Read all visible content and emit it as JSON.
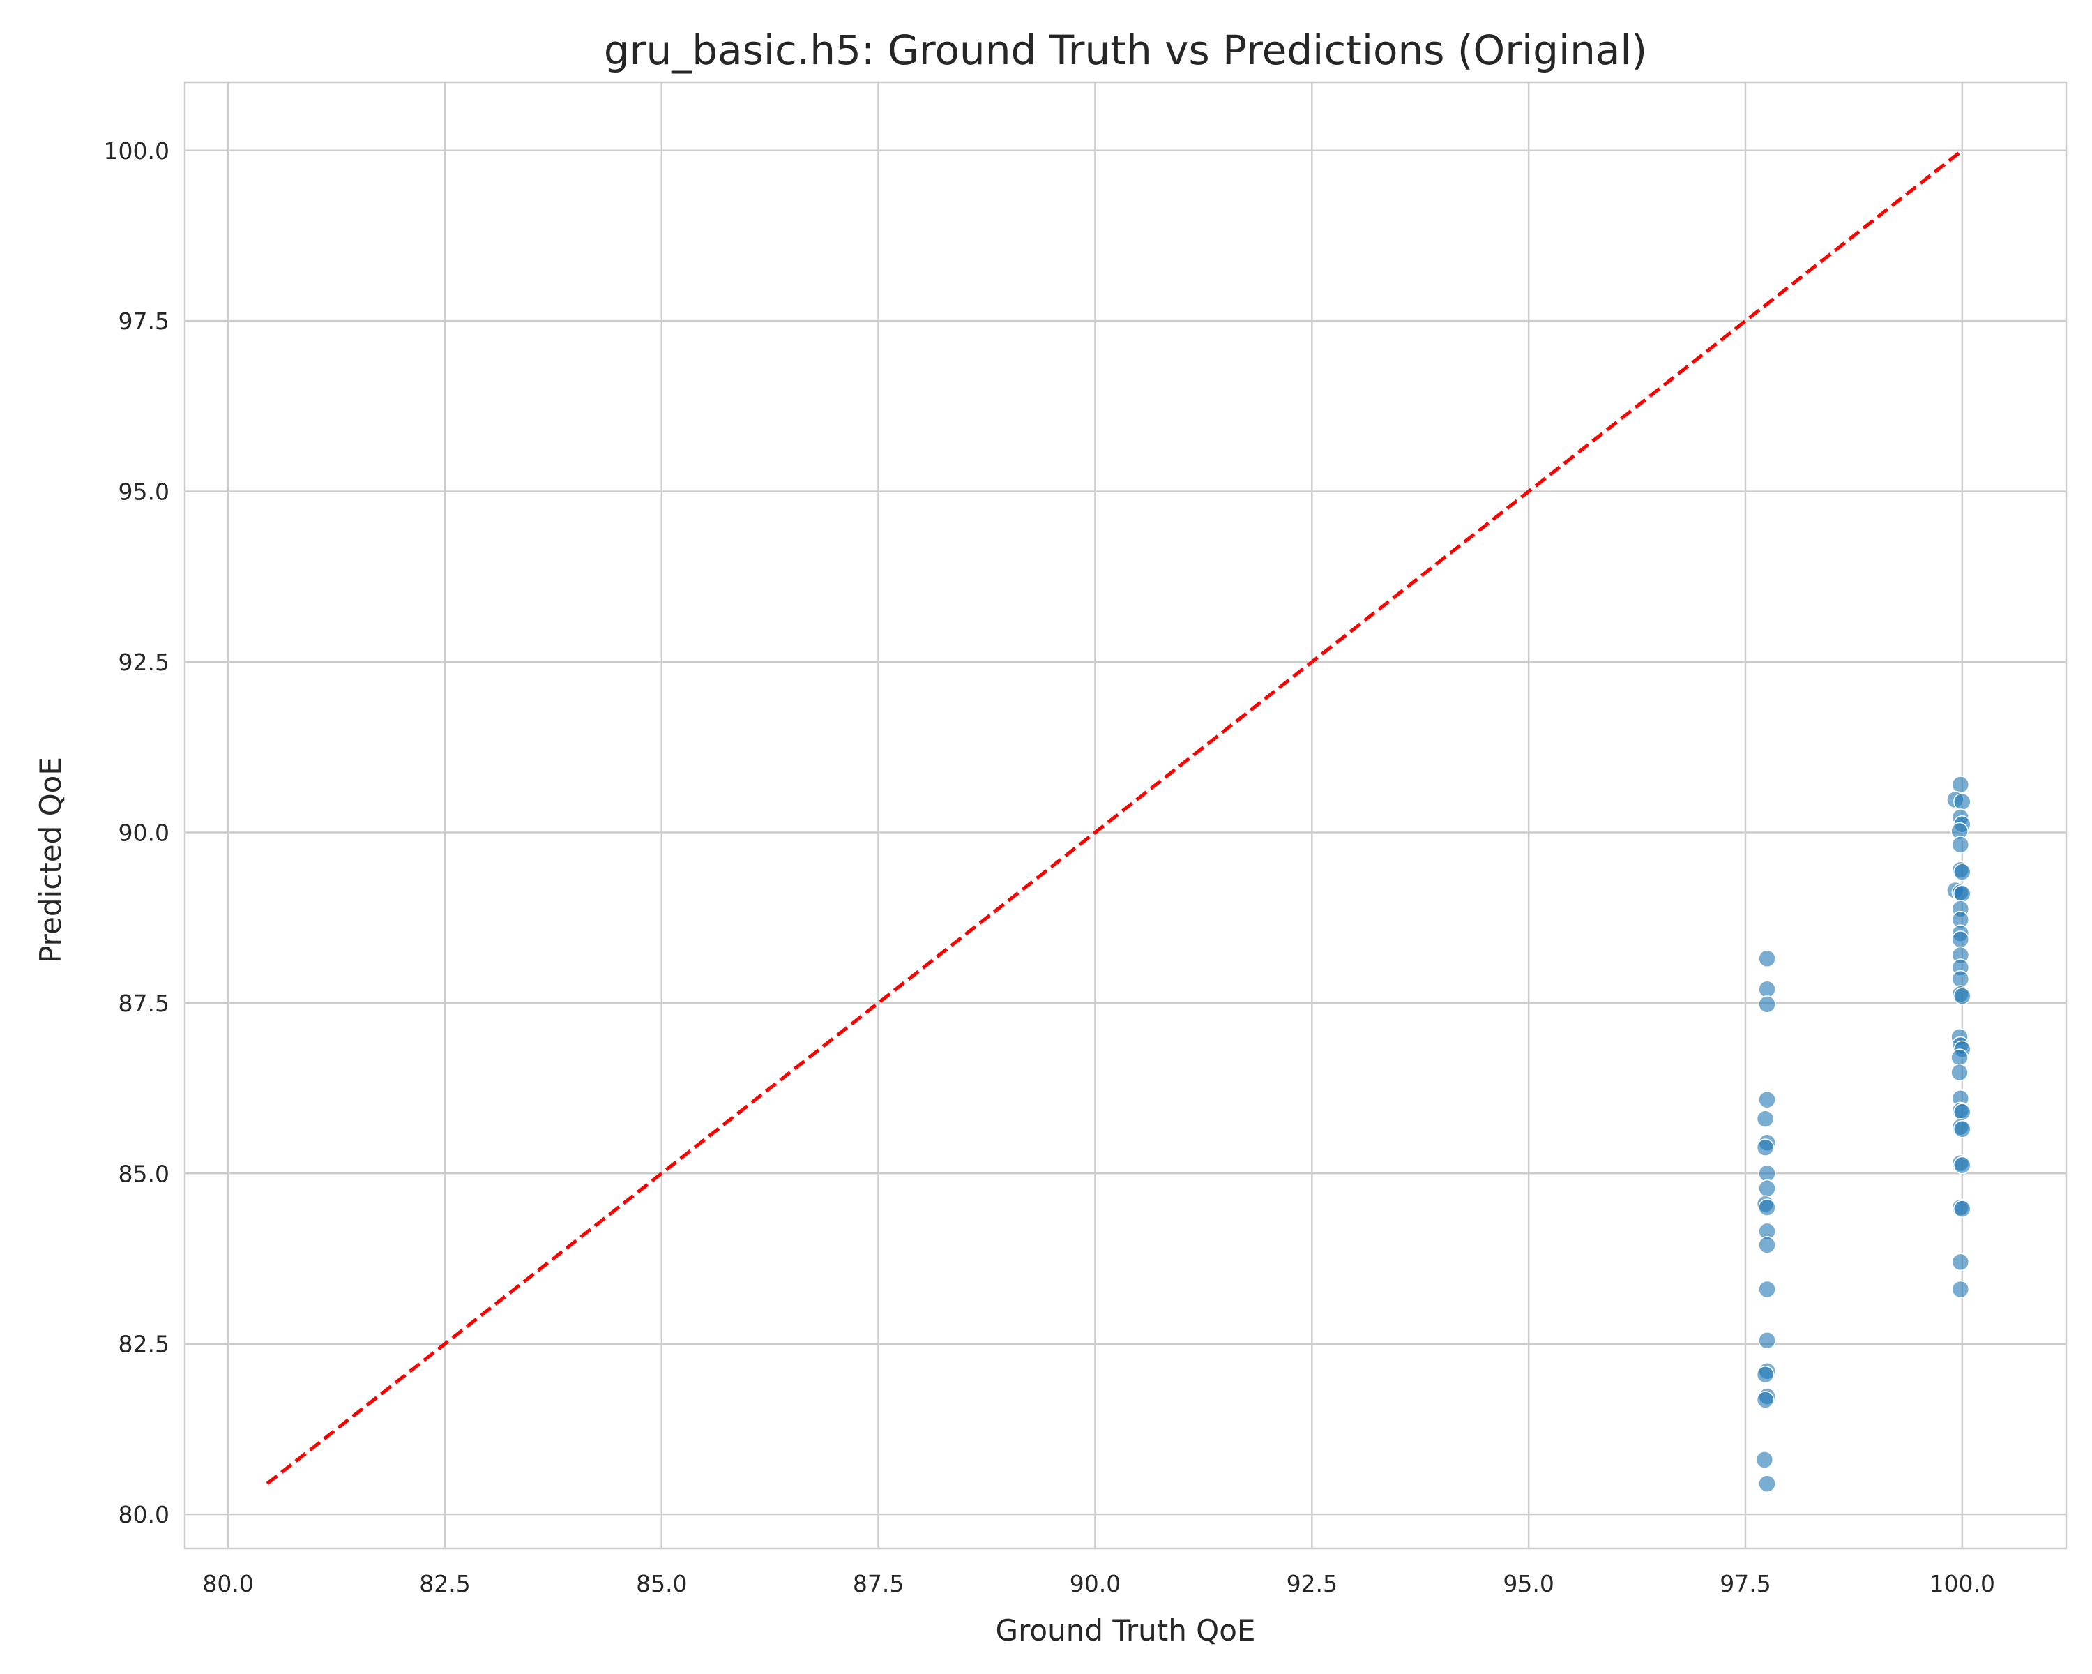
{
  "chart_data": {
    "type": "scatter",
    "title": "gru_basic.h5: Ground Truth vs Predictions (Original)",
    "xlabel": "Ground Truth QoE",
    "ylabel": "Predicted QoE",
    "xlim": [
      79.5,
      101.2
    ],
    "ylim": [
      79.5,
      101.0
    ],
    "x_ticks": [
      80.0,
      82.5,
      85.0,
      87.5,
      90.0,
      92.5,
      95.0,
      97.5,
      100.0
    ],
    "y_ticks": [
      80.0,
      82.5,
      85.0,
      87.5,
      90.0,
      92.5,
      95.0,
      97.5,
      100.0
    ],
    "x_tick_labels": [
      "80.0",
      "82.5",
      "85.0",
      "87.5",
      "90.0",
      "92.5",
      "95.0",
      "97.5",
      "100.0"
    ],
    "y_tick_labels": [
      "80.0",
      "82.5",
      "85.0",
      "87.5",
      "90.0",
      "92.5",
      "95.0",
      "97.5",
      "100.0"
    ],
    "grid": true,
    "point_color": "#1f77b4",
    "reference_line": {
      "color": "#ff0000",
      "style": "dashed",
      "x": [
        80.45,
        100.0
      ],
      "y": [
        80.45,
        100.0
      ]
    },
    "series": [
      {
        "points": [
          [
            97.75,
            88.15
          ],
          [
            97.75,
            87.7
          ],
          [
            97.75,
            87.48
          ],
          [
            97.75,
            86.08
          ],
          [
            97.73,
            85.8
          ],
          [
            97.75,
            85.45
          ],
          [
            97.73,
            85.38
          ],
          [
            97.75,
            85.0
          ],
          [
            97.75,
            84.78
          ],
          [
            97.73,
            84.55
          ],
          [
            97.75,
            84.5
          ],
          [
            97.75,
            84.15
          ],
          [
            97.75,
            83.95
          ],
          [
            97.75,
            83.3
          ],
          [
            97.75,
            82.55
          ],
          [
            97.75,
            82.1
          ],
          [
            97.73,
            82.05
          ],
          [
            97.75,
            81.73
          ],
          [
            97.73,
            81.68
          ],
          [
            97.72,
            80.8
          ],
          [
            97.75,
            80.45
          ],
          [
            99.98,
            90.7
          ],
          [
            99.92,
            90.48
          ],
          [
            100.0,
            90.45
          ],
          [
            99.98,
            90.22
          ],
          [
            100.0,
            90.12
          ],
          [
            99.97,
            90.02
          ],
          [
            99.98,
            89.82
          ],
          [
            99.98,
            89.45
          ],
          [
            100.0,
            89.42
          ],
          [
            99.92,
            89.15
          ],
          [
            99.98,
            89.12
          ],
          [
            100.0,
            89.1
          ],
          [
            99.98,
            88.88
          ],
          [
            99.98,
            88.72
          ],
          [
            99.98,
            88.52
          ],
          [
            99.98,
            88.43
          ],
          [
            99.98,
            88.2
          ],
          [
            99.98,
            88.02
          ],
          [
            99.98,
            87.85
          ],
          [
            99.98,
            87.63
          ],
          [
            100.0,
            87.6
          ],
          [
            99.97,
            87.0
          ],
          [
            99.98,
            86.88
          ],
          [
            100.0,
            86.82
          ],
          [
            99.97,
            86.7
          ],
          [
            99.97,
            86.48
          ],
          [
            99.98,
            86.1
          ],
          [
            99.98,
            85.92
          ],
          [
            100.0,
            85.9
          ],
          [
            99.98,
            85.68
          ],
          [
            100.0,
            85.65
          ],
          [
            99.98,
            85.15
          ],
          [
            100.0,
            85.12
          ],
          [
            99.98,
            84.5
          ],
          [
            100.0,
            84.48
          ],
          [
            99.98,
            83.7
          ],
          [
            99.98,
            83.3
          ]
        ]
      }
    ]
  }
}
